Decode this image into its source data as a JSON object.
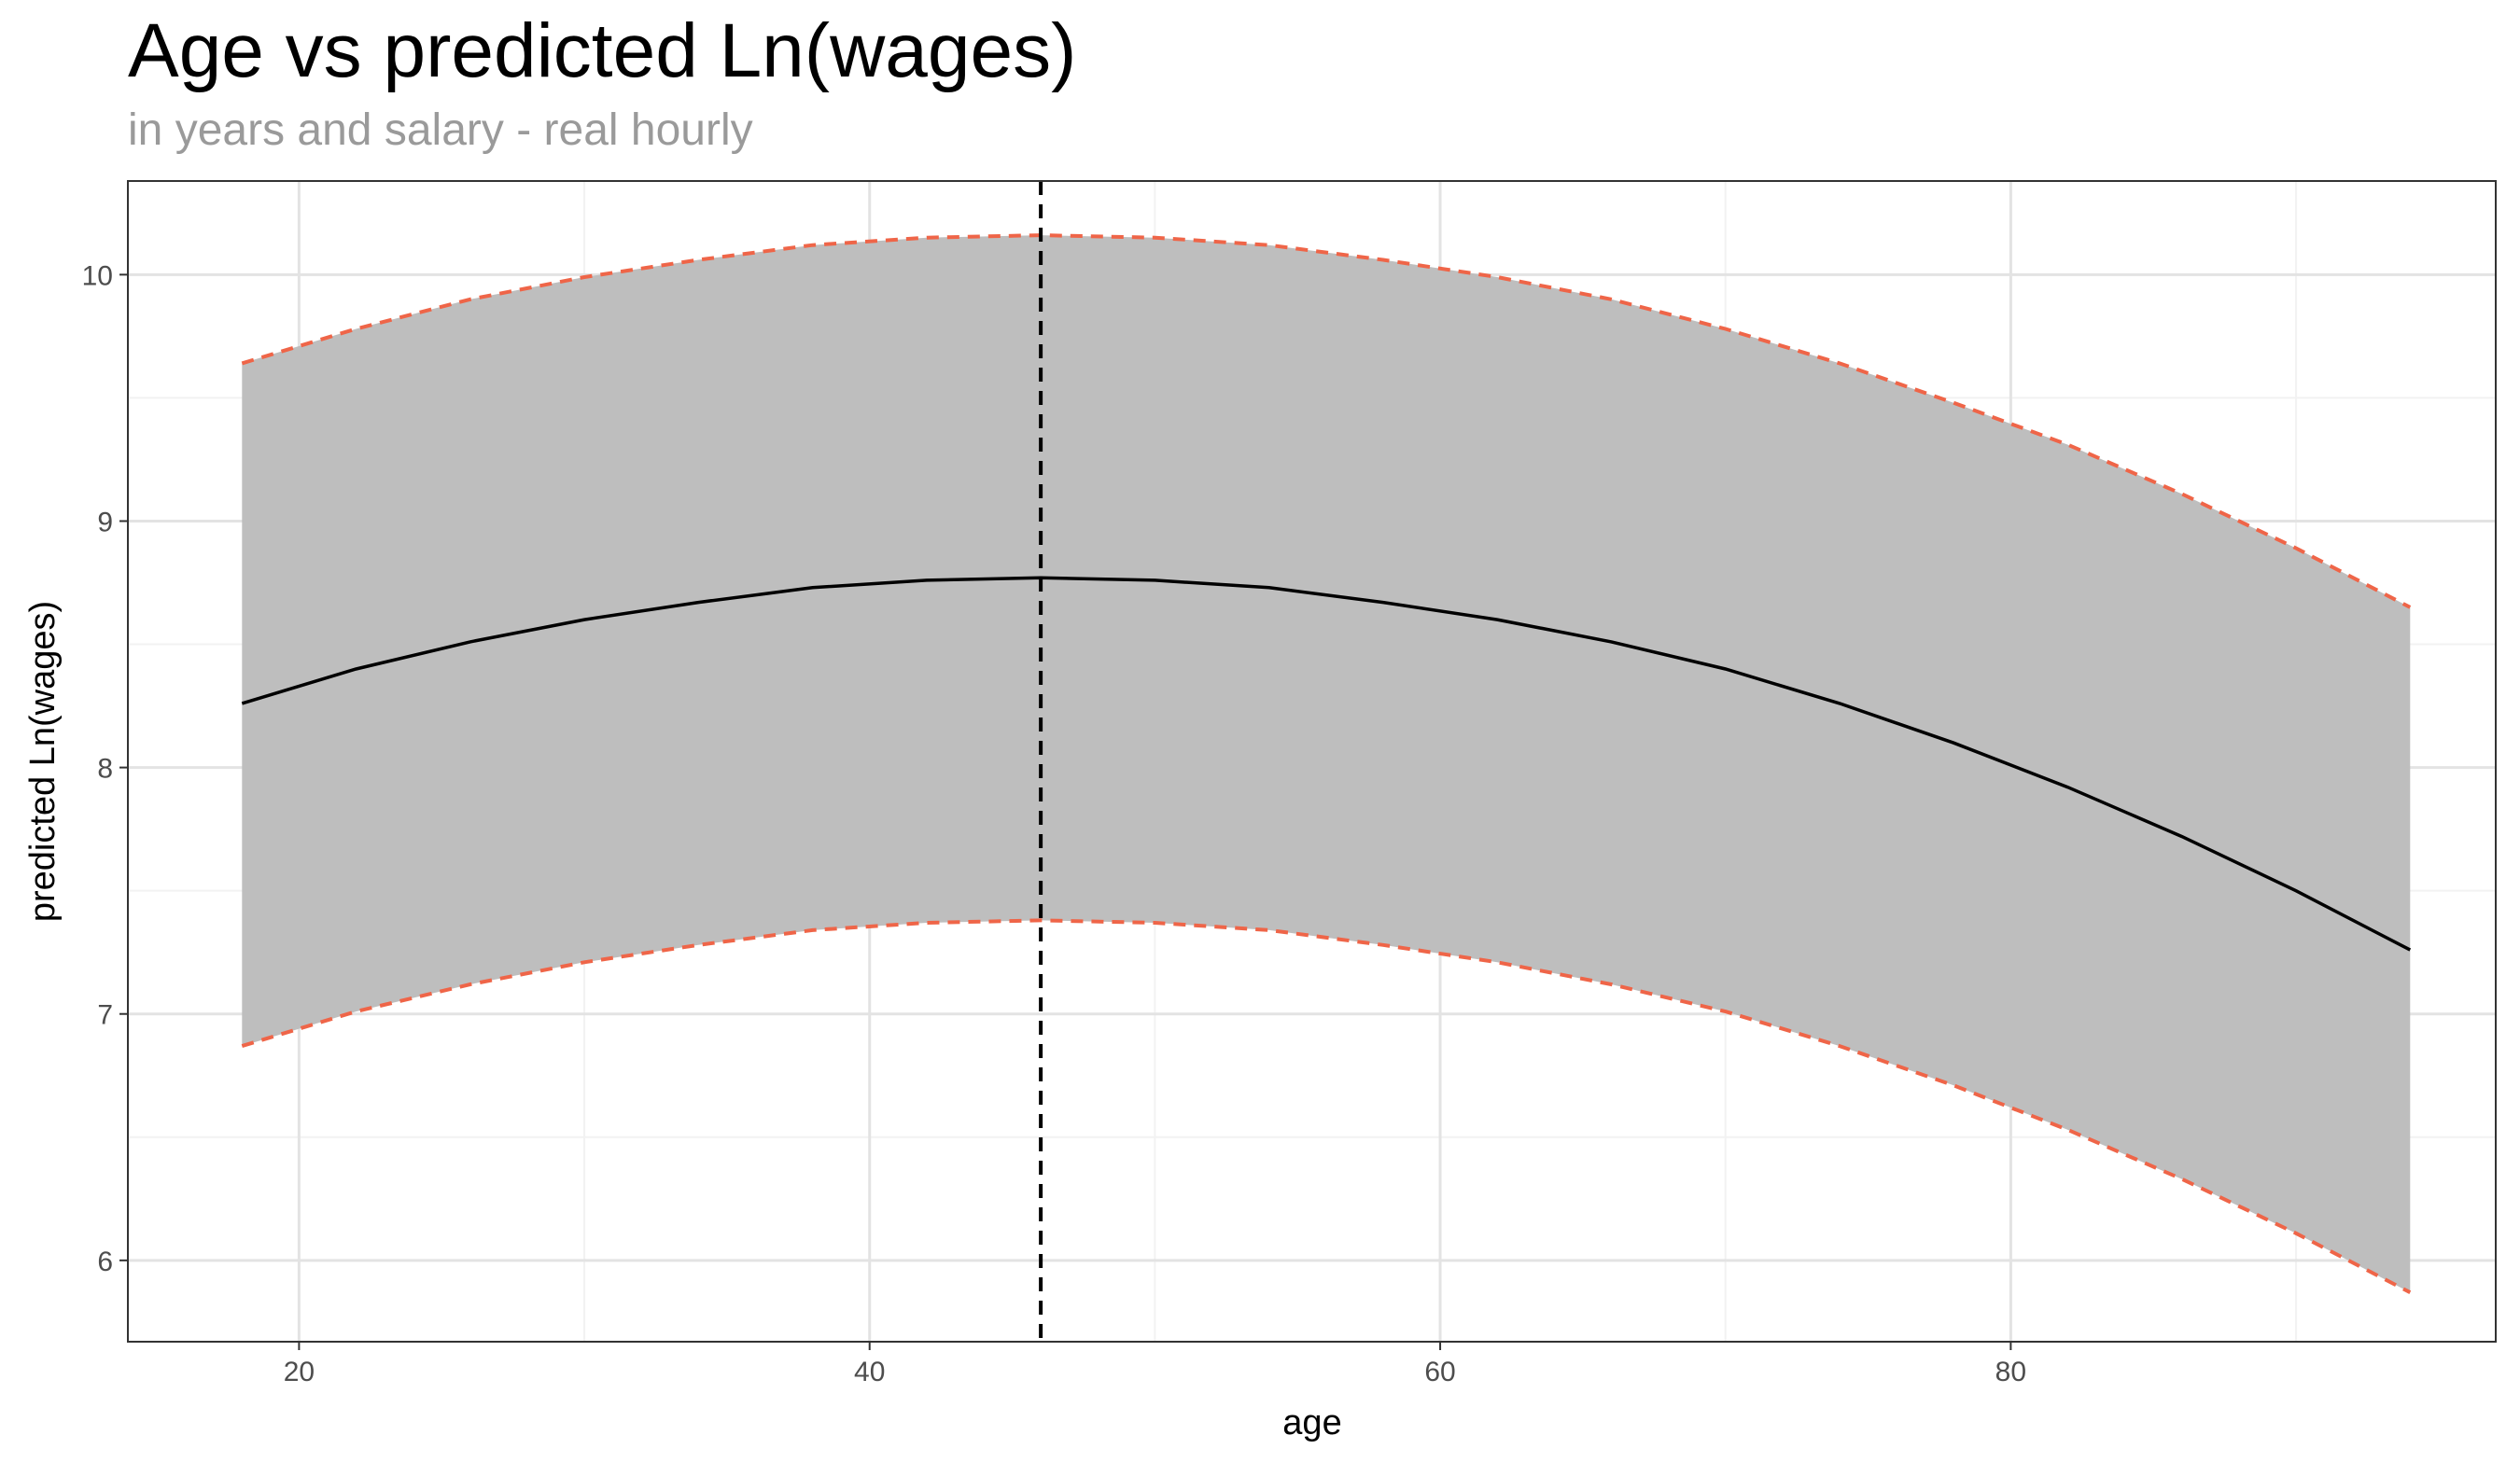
{
  "chart_data": {
    "type": "line",
    "title": "Age vs predicted Ln(wages)",
    "subtitle": "in years and salary - real hourly",
    "xlabel": "age",
    "ylabel": "predicted Ln(wages)",
    "xlim": [
      14,
      97
    ],
    "ylim": [
      5.67,
      10.38
    ],
    "x_ticks": [
      20,
      40,
      60,
      80
    ],
    "y_ticks": [
      6,
      7,
      8,
      9,
      10
    ],
    "grid": true,
    "legend": "none",
    "series": [
      {
        "role": "fit",
        "style": "solid",
        "color": "#000000",
        "x": [
          18,
          22,
          26,
          30,
          34,
          38,
          42,
          46,
          50,
          54,
          58,
          62,
          66,
          70,
          74,
          78,
          82,
          86,
          90,
          94
        ],
        "y": [
          8.26,
          8.4,
          8.51,
          8.6,
          8.67,
          8.73,
          8.76,
          8.77,
          8.76,
          8.73,
          8.67,
          8.6,
          8.51,
          8.4,
          8.26,
          8.1,
          7.92,
          7.72,
          7.5,
          7.26
        ]
      },
      {
        "role": "upper-bound",
        "style": "dashed",
        "color": "#ef6548",
        "x": [
          18,
          22,
          26,
          30,
          34,
          38,
          42,
          46,
          50,
          54,
          58,
          62,
          66,
          70,
          74,
          78,
          82,
          86,
          90,
          94
        ],
        "y": [
          9.64,
          9.78,
          9.9,
          9.99,
          10.06,
          10.12,
          10.15,
          10.16,
          10.15,
          10.12,
          10.06,
          9.99,
          9.9,
          9.78,
          9.64,
          9.48,
          9.31,
          9.11,
          8.89,
          8.65
        ]
      },
      {
        "role": "lower-bound",
        "style": "dashed",
        "color": "#ef6548",
        "x": [
          18,
          22,
          26,
          30,
          34,
          38,
          42,
          46,
          50,
          54,
          58,
          62,
          66,
          70,
          74,
          78,
          82,
          86,
          90,
          94
        ],
        "y": [
          6.87,
          7.01,
          7.12,
          7.21,
          7.28,
          7.34,
          7.37,
          7.38,
          7.37,
          7.34,
          7.28,
          7.21,
          7.12,
          7.01,
          6.87,
          6.71,
          6.53,
          6.33,
          6.11,
          5.87
        ]
      }
    ],
    "vline": {
      "x": 46,
      "style": "dashed",
      "color": "#000000"
    },
    "ribbon_color": "#bebebe"
  }
}
